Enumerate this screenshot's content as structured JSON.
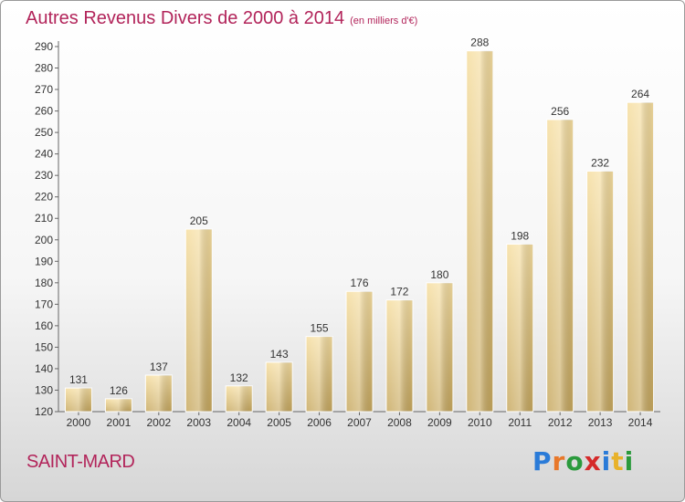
{
  "page": {
    "commune": "SAINT-MARD"
  },
  "logo": {
    "text": "Proxiti",
    "letters": [
      {
        "ch": "P",
        "color": "#2a7bd8"
      },
      {
        "ch": "r",
        "color": "#e8782a"
      },
      {
        "ch": "o",
        "color": "#2a9a3c"
      },
      {
        "ch": "x",
        "color": "#d52a2a"
      },
      {
        "ch": "i",
        "color": "#2a7bd8"
      },
      {
        "ch": "t",
        "color": "#e8b22a"
      },
      {
        "ch": "i",
        "color": "#2a9a3c"
      }
    ]
  },
  "chart_data": {
    "type": "bar",
    "title": "Autres Revenus Divers de 2000 à 2014",
    "unit": "(en milliers d'€)",
    "categories": [
      "2000",
      "2001",
      "2002",
      "2003",
      "2004",
      "2005",
      "2006",
      "2007",
      "2008",
      "2009",
      "2010",
      "2011",
      "2012",
      "2013",
      "2014"
    ],
    "values": [
      131,
      126,
      137,
      205,
      132,
      143,
      155,
      176,
      172,
      180,
      288,
      198,
      256,
      232,
      264
    ],
    "ylim": [
      120,
      290
    ],
    "yticks": [
      120,
      130,
      140,
      150,
      160,
      170,
      180,
      190,
      200,
      210,
      220,
      230,
      240,
      250,
      260,
      270,
      280,
      290
    ],
    "grid": false,
    "legend": "none",
    "bar_color": "#e9cf8a"
  }
}
